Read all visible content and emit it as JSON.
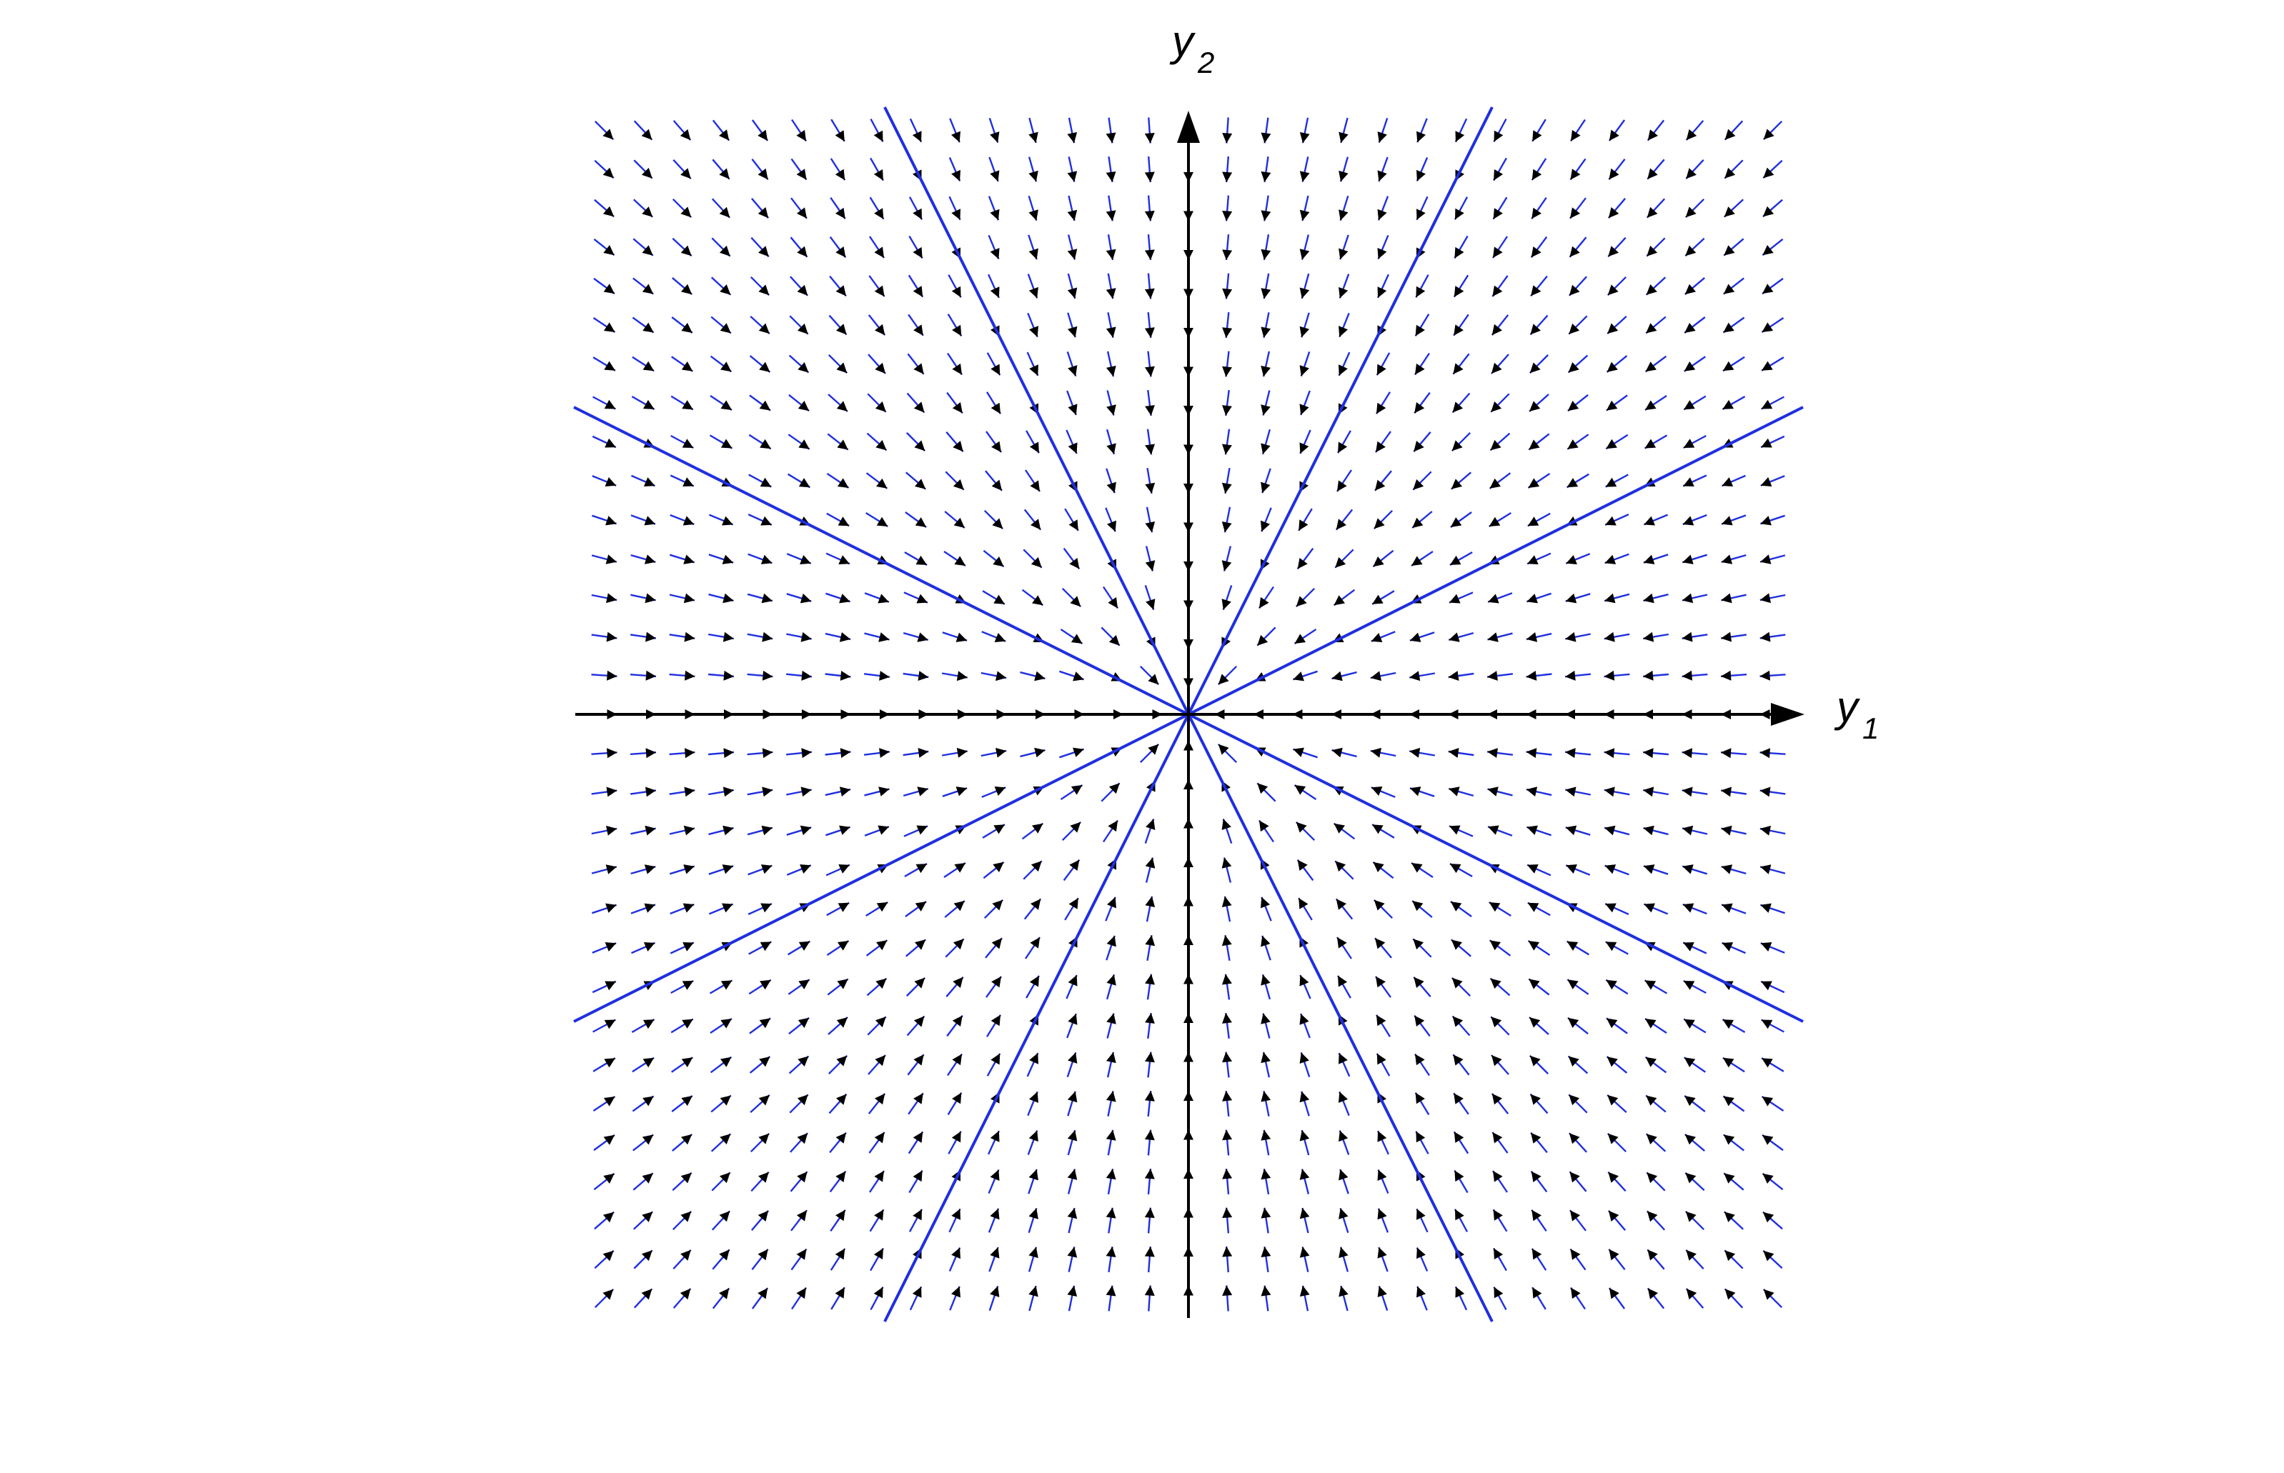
{
  "diagram": {
    "type": "phase-portrait-direction-field",
    "axes": {
      "horizontal": {
        "label": "y",
        "subscript": "1"
      },
      "vertical": {
        "label": "y",
        "subscript": "2"
      }
    },
    "grid": {
      "columns": 31,
      "rows": 31
    },
    "field_direction": "toward-origin",
    "trajectory_slopes": [
      0,
      "vertical",
      0.5,
      -0.5,
      2,
      -2
    ],
    "colors": {
      "axis": "#000000",
      "trajectory": "#1f2fe0",
      "arrow_shaft": "#1f2fe0",
      "arrow_head": "#000000",
      "background": "#ffffff"
    }
  }
}
